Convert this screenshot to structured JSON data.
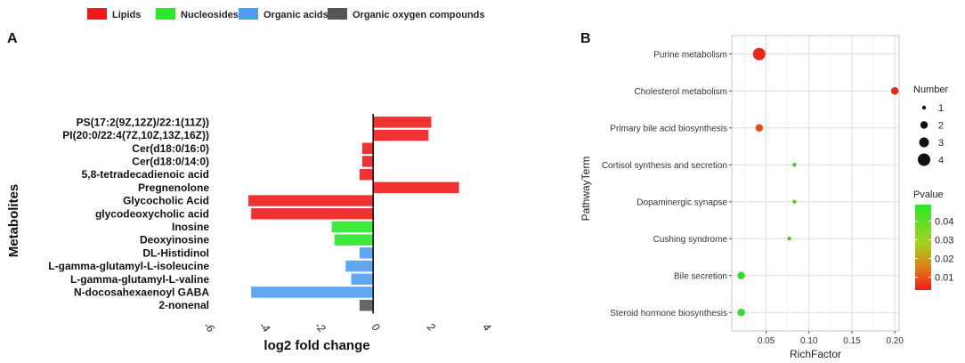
{
  "chart_data": [
    {
      "panel": "A",
      "type": "bar",
      "orientation": "horizontal",
      "xlabel": "log2  fold change",
      "ylabel": "Metabolites",
      "xlim": [
        -6,
        4
      ],
      "xticks": [
        "-6",
        "-4",
        "-2",
        "0",
        "2",
        "4"
      ],
      "legend": [
        {
          "label": "Lipids",
          "color": "#ee1c1c"
        },
        {
          "label": "Nucleosides",
          "color": "#29e829"
        },
        {
          "label": "Organic acids",
          "color": "#4f9df0"
        },
        {
          "label": "Organic oxygen compounds",
          "color": "#555555"
        }
      ],
      "categories": [
        "PS(17:2(9Z,12Z)/22:1(11Z))",
        "PI(20:0/22:4(7Z,10Z,13Z,16Z))",
        "Cer(d18:0/16:0)",
        "Cer(d18:0/14:0)",
        "5,8-tetradecadienoic acid",
        "Pregnenolone",
        "Glycocholic Acid",
        "glycodeoxycholic acid",
        "Inosine",
        "Deoxyinosine",
        "DL-Histidinol",
        "L-gamma-glutamyl-L-isoleucine",
        "L-gamma-glutamyl-L-valine",
        "N-docosahexaenoyl GABA",
        "2-nonenal"
      ],
      "values": [
        2.1,
        2.0,
        -0.4,
        -0.4,
        -0.5,
        3.1,
        -4.5,
        -4.4,
        -1.5,
        -1.4,
        -0.5,
        -1.0,
        -0.8,
        -4.4,
        -0.5
      ],
      "groups": [
        "Lipids",
        "Lipids",
        "Lipids",
        "Lipids",
        "Lipids",
        "Lipids",
        "Lipids",
        "Lipids",
        "Nucleosides",
        "Nucleosides",
        "Organic acids",
        "Organic acids",
        "Organic acids",
        "Organic acids",
        "Organic oxygen compounds"
      ]
    },
    {
      "panel": "B",
      "type": "scatter",
      "xlabel": "RichFactor",
      "ylabel": "PathwayTerm",
      "xlim": [
        0.01,
        0.205
      ],
      "xticks": [
        0.05,
        0.1,
        0.15,
        0.2
      ],
      "xtick_labels": [
        "0.05",
        "0.10",
        "0.15",
        "0.20"
      ],
      "points": [
        {
          "term": "Purine metabolism",
          "x": 0.042,
          "number": 4,
          "pvalue": 0.003
        },
        {
          "term": "Cholesterol metabolism",
          "x": 0.2,
          "number": 2,
          "pvalue": 0.002
        },
        {
          "term": "Primary bile acid biosynthesis",
          "x": 0.042,
          "number": 2,
          "pvalue": 0.012
        },
        {
          "term": "Cortisol synthesis and secretion",
          "x": 0.083,
          "number": 1,
          "pvalue": 0.04
        },
        {
          "term": "Dopaminergic synapse",
          "x": 0.083,
          "number": 1,
          "pvalue": 0.04
        },
        {
          "term": "Cushing syndrome",
          "x": 0.077,
          "number": 1,
          "pvalue": 0.042
        },
        {
          "term": "Bile secretion",
          "x": 0.021,
          "number": 2,
          "pvalue": 0.045
        },
        {
          "term": "Steroid hormone biosynthesis",
          "x": 0.021,
          "number": 2,
          "pvalue": 0.045
        }
      ],
      "size_legend": {
        "title": "Number",
        "values": [
          1,
          2,
          3,
          4
        ],
        "labels": [
          "1",
          "2",
          "3",
          "4"
        ]
      },
      "color_legend": {
        "title": "Pvalue",
        "ticks": [
          0.04,
          0.03,
          0.02,
          0.01
        ],
        "labels": [
          "0.04",
          "0.03",
          "0.02",
          "0.01"
        ],
        "low_color": "#ee1c1c",
        "high_color": "#29e829"
      }
    }
  ],
  "panel_labels": {
    "a": "A",
    "b": "B"
  }
}
